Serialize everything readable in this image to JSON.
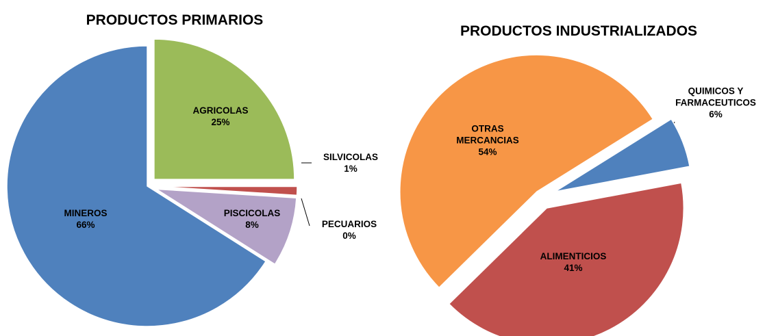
{
  "chart_data": [
    {
      "type": "pie",
      "title": "PRODUCTOS PRIMARIOS",
      "categories": [
        "AGRICOLAS",
        "SILVICOLAS",
        "PECUARIOS",
        "PISCICOLAS",
        "MINEROS"
      ],
      "values": [
        25,
        1,
        0,
        8,
        66
      ],
      "value_labels": [
        "25%",
        "1%",
        "0%",
        "8%",
        "66%"
      ],
      "colors": [
        "#9bbb59",
        "#c0504d",
        "#4bacc6",
        "#b3a2c7",
        "#4f81bd"
      ]
    },
    {
      "type": "pie",
      "title": "PRODUCTOS INDUSTRIALIZADOS",
      "categories": [
        "QUIMICOS Y FARMACEUTICOS",
        "ALIMENTICIOS",
        "OTRAS MERCANCIAS"
      ],
      "values": [
        6,
        41,
        54
      ],
      "value_labels": [
        "6%",
        "41%",
        "54%"
      ],
      "colors": [
        "#4f81bd",
        "#c0504d",
        "#f79646"
      ]
    }
  ]
}
